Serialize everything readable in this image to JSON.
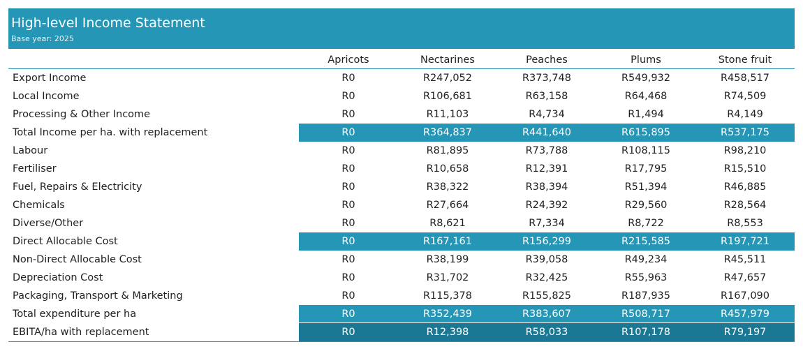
{
  "header": {
    "title": "High-level Income Statement",
    "subtitle": "Base year: 2025"
  },
  "columns": [
    "Apricots",
    "Nectarines",
    "Peaches",
    "Plums",
    "Stone fruit"
  ],
  "colors": {
    "accent": "#2596b6",
    "accent_dark": "#1b7894"
  },
  "rows": [
    {
      "label": "Export Income",
      "values": [
        "R0",
        "R247,052",
        "R373,748",
        "R549,932",
        "R458,517"
      ],
      "highlight": "none"
    },
    {
      "label": "Local Income",
      "values": [
        "R0",
        "R106,681",
        "R63,158",
        "R64,468",
        "R74,509"
      ],
      "highlight": "none"
    },
    {
      "label": "Processing & Other Income",
      "values": [
        "R0",
        "R11,103",
        "R4,734",
        "R1,494",
        "R4,149"
      ],
      "highlight": "none"
    },
    {
      "label": "Total Income per ha. with replacement",
      "values": [
        "R0",
        "R364,837",
        "R441,640",
        "R615,895",
        "R537,175"
      ],
      "highlight": "accent"
    },
    {
      "label": "Labour",
      "values": [
        "R0",
        "R81,895",
        "R73,788",
        "R108,115",
        "R98,210"
      ],
      "highlight": "none"
    },
    {
      "label": "Fertiliser",
      "values": [
        "R0",
        "R10,658",
        "R12,391",
        "R17,795",
        "R15,510"
      ],
      "highlight": "none"
    },
    {
      "label": "Fuel, Repairs & Electricity",
      "values": [
        "R0",
        "R38,322",
        "R38,394",
        "R51,394",
        "R46,885"
      ],
      "highlight": "none"
    },
    {
      "label": "Chemicals",
      "values": [
        "R0",
        "R27,664",
        "R24,392",
        "R29,560",
        "R28,564"
      ],
      "highlight": "none"
    },
    {
      "label": "Diverse/Other",
      "values": [
        "R0",
        "R8,621",
        "R7,334",
        "R8,722",
        "R8,553"
      ],
      "highlight": "none"
    },
    {
      "label": "Direct Allocable Cost",
      "values": [
        "R0",
        "R167,161",
        "R156,299",
        "R215,585",
        "R197,721"
      ],
      "highlight": "accent"
    },
    {
      "label": "Non-Direct Allocable Cost",
      "values": [
        "R0",
        "R38,199",
        "R39,058",
        "R49,234",
        "R45,511"
      ],
      "highlight": "none"
    },
    {
      "label": "Depreciation Cost",
      "values": [
        "R0",
        "R31,702",
        "R32,425",
        "R55,963",
        "R47,657"
      ],
      "highlight": "none"
    },
    {
      "label": "Packaging, Transport & Marketing",
      "values": [
        "R0",
        "R115,378",
        "R155,825",
        "R187,935",
        "R167,090"
      ],
      "highlight": "none"
    },
    {
      "label": "Total expenditure per ha",
      "values": [
        "R0",
        "R352,439",
        "R383,607",
        "R508,717",
        "R457,979"
      ],
      "highlight": "accent"
    },
    {
      "label": "EBITA/ha with replacement",
      "values": [
        "R0",
        "R12,398",
        "R58,033",
        "R107,178",
        "R79,197"
      ],
      "highlight": "dark"
    }
  ]
}
